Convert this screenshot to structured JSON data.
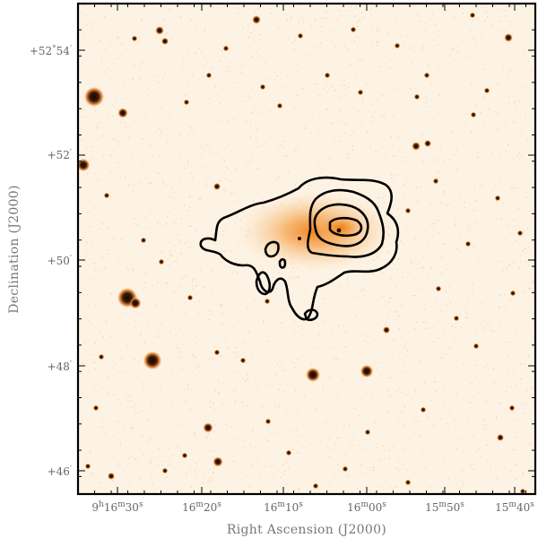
{
  "figure": {
    "xlabel": "Right Ascension (J2000)",
    "ylabel": "Declination (J2000)",
    "x_ticks": [
      {
        "h": "9",
        "m": "16",
        "s": "30"
      },
      {
        "h": "",
        "m": "16",
        "s": "20"
      },
      {
        "h": "",
        "m": "16",
        "s": "10"
      },
      {
        "h": "",
        "m": "16",
        "s": "00"
      },
      {
        "h": "",
        "m": "15",
        "s": "50"
      },
      {
        "h": "",
        "m": "15",
        "s": "40"
      }
    ],
    "y_ticks": [
      {
        "sign": "+",
        "deg": "52",
        "min": "54",
        "show_deg": true
      },
      {
        "sign": "+",
        "deg": "",
        "min": "52",
        "show_deg": false
      },
      {
        "sign": "+",
        "deg": "",
        "min": "50",
        "show_deg": false
      },
      {
        "sign": "+",
        "deg": "",
        "min": "48",
        "show_deg": false
      },
      {
        "sign": "+",
        "deg": "",
        "min": "46",
        "show_deg": false
      }
    ],
    "colors": {
      "background": "#fdf3e4",
      "noise": "#e9a25a",
      "glow": "#f08a1e",
      "star_core": "#1a0e05",
      "contour": "#000000"
    }
  }
}
